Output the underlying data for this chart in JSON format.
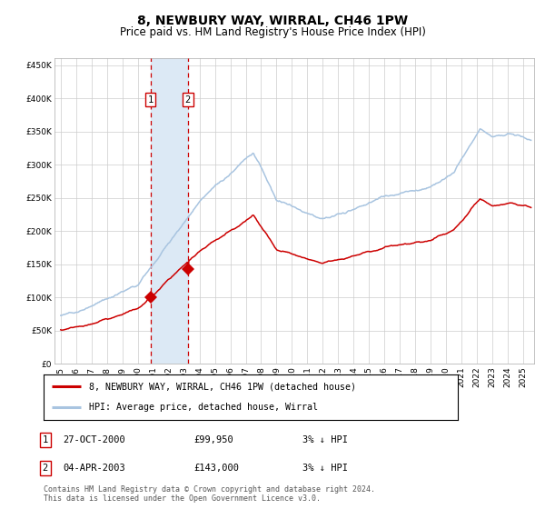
{
  "title": "8, NEWBURY WAY, WIRRAL, CH46 1PW",
  "subtitle": "Price paid vs. HM Land Registry's House Price Index (HPI)",
  "ylim": [
    0,
    460000
  ],
  "yticks": [
    0,
    50000,
    100000,
    150000,
    200000,
    250000,
    300000,
    350000,
    400000,
    450000
  ],
  "x_start_year": 1995,
  "x_end_year": 2025,
  "sale1_date": 2000.82,
  "sale1_price": 99950,
  "sale2_date": 2003.25,
  "sale2_price": 143000,
  "hpi_line_color": "#a8c4e0",
  "price_line_color": "#cc0000",
  "sale_marker_color": "#cc0000",
  "shade_color": "#dce9f5",
  "vline_color": "#cc0000",
  "grid_color": "#cccccc",
  "background_color": "#ffffff",
  "legend_label_red": "8, NEWBURY WAY, WIRRAL, CH46 1PW (detached house)",
  "legend_label_blue": "HPI: Average price, detached house, Wirral",
  "footnote": "Contains HM Land Registry data © Crown copyright and database right 2024.\nThis data is licensed under the Open Government Licence v3.0.",
  "table_row1": [
    "1",
    "27-OCT-2000",
    "£99,950",
    "3% ↓ HPI"
  ],
  "table_row2": [
    "2",
    "04-APR-2003",
    "£143,000",
    "3% ↓ HPI"
  ]
}
